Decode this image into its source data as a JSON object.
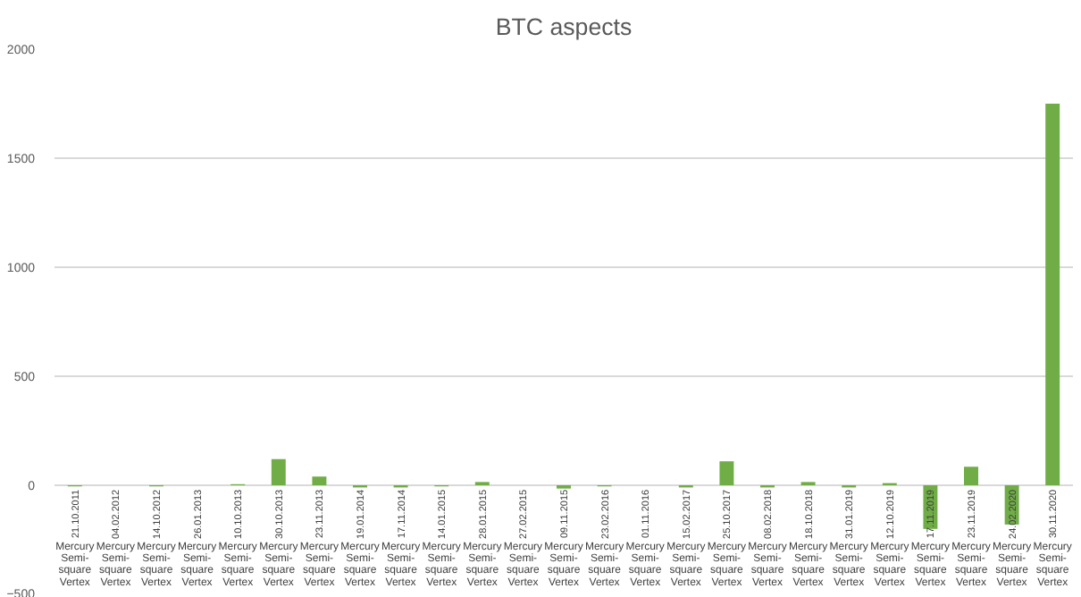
{
  "chart_data": {
    "type": "bar",
    "title": "BTC aspects",
    "categories": [
      "21.10.2011\nMercury Semi-square Vertex",
      "04.02.2012\nMercury Semi-square Vertex",
      "14.10.2012\nMercury Semi-square Vertex",
      "26.01.2013\nMercury Semi-square Vertex",
      "10.10.2013\nMercury Semi-square Vertex",
      "30.10.2013\nMercury Semi-square Vertex",
      "23.11.2013\nMercury Semi-square Vertex",
      "19.01.2014\nMercury Semi-square Vertex",
      "17.11.2014\nMercury Semi-square Vertex",
      "14.01.2015\nMercury Semi-square Vertex",
      "28.01.2015\nMercury Semi-square Vertex",
      "27.02.2015\nMercury Semi-square Vertex",
      "09.11.2015\nMercury Semi-square Vertex",
      "23.02.2016\nMercury Semi-square Vertex",
      "01.11.2016\nMercury Semi-square Vertex",
      "15.02.2017\nMercury Semi-square Vertex",
      "25.10.2017\nMercury Semi-square Vertex",
      "08.02.2018\nMercury Semi-square Vertex",
      "18.10.2018\nMercury Semi-square Vertex",
      "31.01.2019\nMercury Semi-square Vertex",
      "12.10.2019\nMercury Semi-square Vertex",
      "17.11.2019\nMercury Semi-square Vertex",
      "23.11.2019\nMercury Semi-square Vertex",
      "24.02.2020\nMercury Semi-square Vertex",
      "30.11.2020\nMercury Semi-square Vertex"
    ],
    "values": [
      -5,
      0,
      -5,
      0,
      5,
      120,
      40,
      -10,
      -10,
      -5,
      15,
      0,
      -15,
      -5,
      0,
      -10,
      110,
      -10,
      15,
      -10,
      10,
      -200,
      85,
      -180,
      1750
    ],
    "color": "#70ad47",
    "ylim": [
      -500,
      2000
    ],
    "yticks": [
      -500,
      0,
      500,
      1000,
      1500,
      2000
    ],
    "grid": "y"
  }
}
